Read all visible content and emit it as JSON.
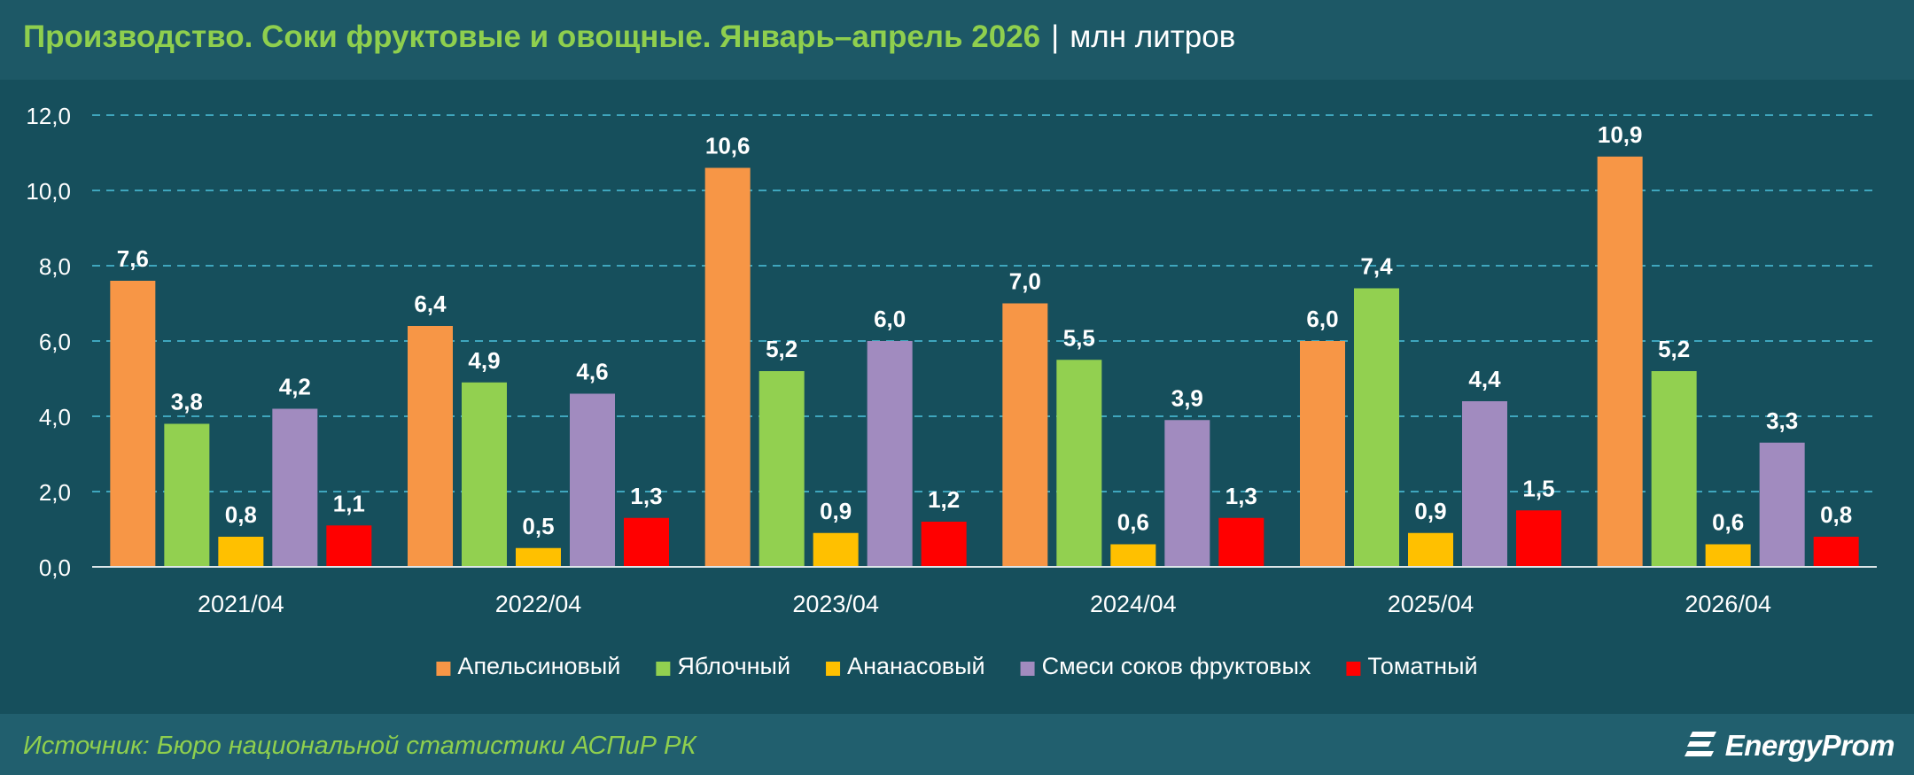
{
  "header": {
    "title": "Производство. Соки фруктовые и овощные. Январь–апрель 2026",
    "separator": "|",
    "unit": "млн литров"
  },
  "footer": {
    "source": "Источник: Бюро национальной статистики АСПиР РК",
    "logo_text": "EnergyProm",
    "logo_icon": "energyprom-logo-icon"
  },
  "colors": {
    "background": "#164f5c",
    "header_bg": "#1d5866",
    "footer_bg": "#215f6e",
    "title": "#8fcf4e",
    "gridline": "#3fa6bd"
  },
  "chart_data": {
    "type": "bar",
    "categories": [
      "2021/04",
      "2022/04",
      "2023/04",
      "2024/04",
      "2025/04",
      "2026/04"
    ],
    "series": [
      {
        "name": "Апельсиновый",
        "color": "#f79646",
        "values": [
          7.6,
          6.4,
          10.6,
          7.0,
          6.0,
          10.9
        ]
      },
      {
        "name": "Яблочный",
        "color": "#92d050",
        "values": [
          3.8,
          4.9,
          5.2,
          5.5,
          7.4,
          5.2
        ]
      },
      {
        "name": "Ананасовый",
        "color": "#ffc000",
        "values": [
          0.8,
          0.5,
          0.9,
          0.6,
          0.9,
          0.6
        ]
      },
      {
        "name": "Смеси соков фруктовых",
        "color": "#a18bbf",
        "values": [
          4.2,
          4.6,
          6.0,
          3.9,
          4.4,
          3.3
        ]
      },
      {
        "name": "Томатный",
        "color": "#ff0000",
        "values": [
          1.1,
          1.3,
          1.2,
          1.3,
          1.5,
          0.8
        ]
      }
    ],
    "ylim": [
      0,
      12
    ],
    "yticks": [
      0,
      2,
      4,
      6,
      8,
      10,
      12
    ],
    "decimal_separator": ",",
    "grid": true,
    "legend": "bottom",
    "data_labels": true
  }
}
